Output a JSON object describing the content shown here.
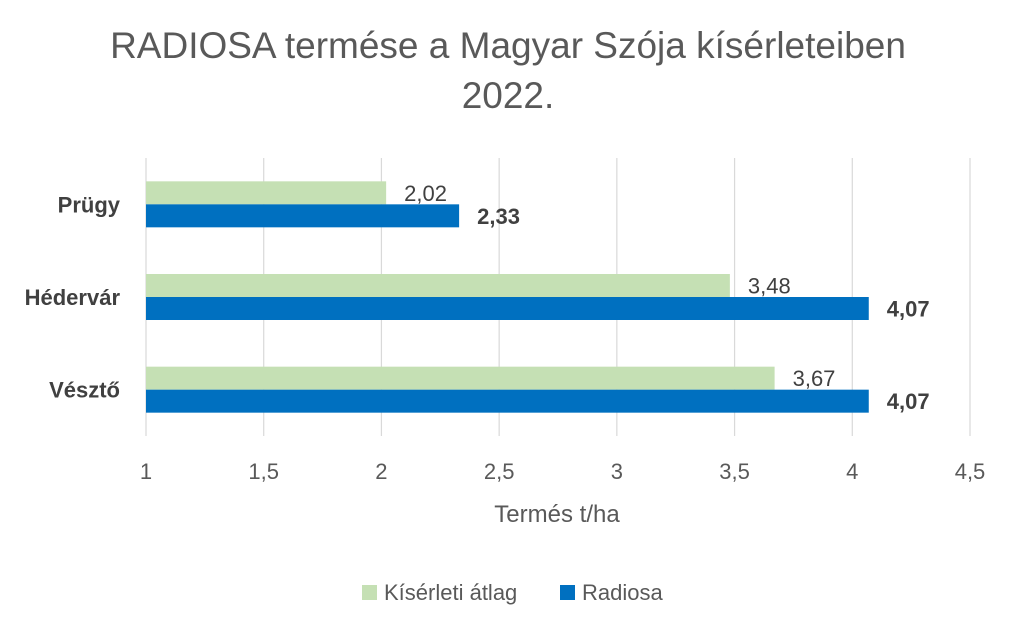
{
  "chart_data": {
    "type": "bar",
    "orientation": "horizontal",
    "title_lines": [
      "RADIOSA termése a Magyar Szója kísérleteiben",
      "2022."
    ],
    "xlabel": "Termés t/ha",
    "ylabel": "",
    "xlim": [
      1,
      4.5
    ],
    "x_ticks": [
      "1",
      "1,5",
      "2",
      "2,5",
      "3",
      "3,5",
      "4",
      "4,5"
    ],
    "x_tick_values": [
      1,
      1.5,
      2,
      2.5,
      3,
      3.5,
      4,
      4.5
    ],
    "grid": "vertical",
    "legend_placement": "bottom",
    "categories": [
      "Prügy",
      "Hédervár",
      "Vésztő"
    ],
    "series": [
      {
        "name": "Kísérleti átlag",
        "color": "#c5e0b4",
        "values": [
          2.02,
          3.48,
          3.67
        ],
        "labels": [
          "2,02",
          "3,48",
          "3,67"
        ],
        "label_bold": false
      },
      {
        "name": "Radiosa",
        "color": "#0070c0",
        "values": [
          2.33,
          4.07,
          4.07
        ],
        "labels": [
          "2,33",
          "4,07",
          "4,07"
        ],
        "label_bold": true
      }
    ]
  }
}
